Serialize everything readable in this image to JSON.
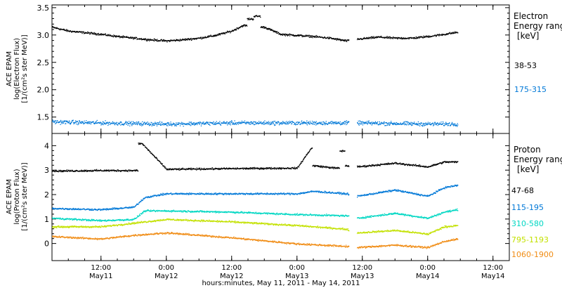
{
  "chart_data": [
    {
      "type": "scatter",
      "panel": "electron",
      "ylabel": [
        "ACE EPAM",
        "log(Electron Flux)",
        "[1/(cm²s ster MeV)]"
      ],
      "ylim": [
        1.2,
        3.55
      ],
      "yticks": [
        1.5,
        2.0,
        2.5,
        3.0,
        3.5
      ],
      "ytick_labels": [
        "1.5",
        "2.0",
        "2.5",
        "3.0",
        "3.5"
      ],
      "legend_title": [
        "Electron",
        "Energy range",
        "[keV]"
      ],
      "data_gap": [
        "2011-05-13 09:30",
        "2011-05-13 11:00"
      ],
      "series": [
        {
          "name": "38-53",
          "color": "#000000",
          "x": [
            "2011-05-11 03:00",
            "2011-05-11 06:00",
            "2011-05-11 09:00",
            "2011-05-11 12:00",
            "2011-05-11 15:00",
            "2011-05-11 18:00",
            "2011-05-11 21:00",
            "2011-05-12 00:00",
            "2011-05-12 03:00",
            "2011-05-12 06:00",
            "2011-05-12 09:00",
            "2011-05-12 12:00",
            "2011-05-12 14:00",
            "2011-05-12 15:30",
            "2011-05-12 16:30",
            "2011-05-12 18:00",
            "2011-05-12 21:00",
            "2011-05-13 00:00",
            "2011-05-13 03:00",
            "2011-05-13 06:00",
            "2011-05-13 09:00",
            "2011-05-13 11:00",
            "2011-05-13 15:00",
            "2011-05-13 18:00",
            "2011-05-13 21:00",
            "2011-05-14 00:00",
            "2011-05-14 03:00",
            "2011-05-14 05:30"
          ],
          "y": [
            3.15,
            3.08,
            3.05,
            3.02,
            2.98,
            2.95,
            2.92,
            2.9,
            2.92,
            2.95,
            3.0,
            3.08,
            3.18,
            3.3,
            3.35,
            3.15,
            3.02,
            3.0,
            2.98,
            2.95,
            2.9,
            2.93,
            2.97,
            2.95,
            2.95,
            2.98,
            3.02,
            3.06
          ]
        },
        {
          "name": "175-315",
          "color": "#0078d7",
          "x": [
            "2011-05-11 03:00",
            "2011-05-11 12:00",
            "2011-05-12 00:00",
            "2011-05-12 12:00",
            "2011-05-13 00:00",
            "2011-05-13 09:00",
            "2011-05-13 11:00",
            "2011-05-14 00:00",
            "2011-05-14 05:30"
          ],
          "y": [
            1.42,
            1.4,
            1.38,
            1.4,
            1.4,
            1.4,
            1.4,
            1.38,
            1.38
          ]
        }
      ]
    },
    {
      "type": "scatter",
      "panel": "proton",
      "ylabel": [
        "ACE EPAM",
        "log(Proton Flux)",
        "[1/(cm²s ster MeV)]"
      ],
      "ylim": [
        -0.7,
        4.5
      ],
      "yticks": [
        0,
        1,
        2,
        3,
        4
      ],
      "ytick_labels": [
        "0",
        "1",
        "2",
        "3",
        "4"
      ],
      "legend_title": [
        "Proton",
        "Energy range",
        "[keV]"
      ],
      "data_gap": [
        "2011-05-13 09:30",
        "2011-05-13 11:00"
      ],
      "series": [
        {
          "name": "47-68",
          "color": "#000000",
          "x": [
            "2011-05-11 03:00",
            "2011-05-11 12:00",
            "2011-05-11 18:00",
            "2011-05-11 19:30",
            "2011-05-12 00:00",
            "2011-05-12 12:00",
            "2011-05-13 00:00",
            "2011-05-13 02:30",
            "2011-05-13 03:00",
            "2011-05-13 07:00",
            "2011-05-13 08:30",
            "2011-05-13 09:00",
            "2011-05-13 11:00",
            "2011-05-13 18:00",
            "2011-05-14 00:00",
            "2011-05-14 03:00",
            "2011-05-14 05:30"
          ],
          "y": [
            2.98,
            3.0,
            3.0,
            4.1,
            3.05,
            3.08,
            3.1,
            3.9,
            3.2,
            3.1,
            3.8,
            3.2,
            3.15,
            3.3,
            3.15,
            3.35,
            3.35
          ]
        },
        {
          "name": "115-195",
          "color": "#0078d7",
          "x": [
            "2011-05-11 03:00",
            "2011-05-11 12:00",
            "2011-05-11 18:00",
            "2011-05-11 20:00",
            "2011-05-12 00:00",
            "2011-05-12 12:00",
            "2011-05-13 00:00",
            "2011-05-13 03:00",
            "2011-05-13 09:00",
            "2011-05-13 11:00",
            "2011-05-13 18:00",
            "2011-05-14 00:00",
            "2011-05-14 03:00",
            "2011-05-14 05:30"
          ],
          "y": [
            1.45,
            1.4,
            1.5,
            1.9,
            2.05,
            2.05,
            2.05,
            2.15,
            2.05,
            1.95,
            2.2,
            1.95,
            2.3,
            2.4
          ]
        },
        {
          "name": "310-580",
          "color": "#00d7c3",
          "x": [
            "2011-05-11 03:00",
            "2011-05-11 12:00",
            "2011-05-11 18:00",
            "2011-05-11 20:00",
            "2011-05-12 00:00",
            "2011-05-12 12:00",
            "2011-05-13 00:00",
            "2011-05-13 09:00",
            "2011-05-13 11:00",
            "2011-05-13 18:00",
            "2011-05-14 00:00",
            "2011-05-14 03:00",
            "2011-05-14 05:30"
          ],
          "y": [
            1.05,
            0.95,
            1.0,
            1.35,
            1.35,
            1.3,
            1.2,
            1.15,
            1.05,
            1.25,
            1.05,
            1.3,
            1.4
          ]
        },
        {
          "name": "795-1193",
          "color": "#c3e100",
          "x": [
            "2011-05-11 03:00",
            "2011-05-11 12:00",
            "2011-05-11 18:00",
            "2011-05-12 00:00",
            "2011-05-12 12:00",
            "2011-05-13 00:00",
            "2011-05-13 09:00",
            "2011-05-13 11:00",
            "2011-05-13 18:00",
            "2011-05-14 00:00",
            "2011-05-14 03:00",
            "2011-05-14 05:30"
          ],
          "y": [
            0.7,
            0.7,
            0.85,
            1.0,
            0.9,
            0.75,
            0.6,
            0.45,
            0.55,
            0.4,
            0.7,
            0.75
          ]
        },
        {
          "name": "1060-1900",
          "color": "#f08c14",
          "x": [
            "2011-05-11 03:00",
            "2011-05-11 12:00",
            "2011-05-11 18:00",
            "2011-05-12 00:00",
            "2011-05-12 12:00",
            "2011-05-13 00:00",
            "2011-05-13 09:00",
            "2011-05-13 11:00",
            "2011-05-13 18:00",
            "2011-05-14 00:00",
            "2011-05-14 03:00",
            "2011-05-14 05:30"
          ],
          "y": [
            0.3,
            0.2,
            0.35,
            0.45,
            0.25,
            0.0,
            -0.1,
            -0.15,
            -0.05,
            -0.15,
            0.1,
            0.2
          ]
        }
      ]
    }
  ],
  "x_axis": {
    "range": [
      "2011-05-11 03:00",
      "2011-05-14 15:00"
    ],
    "ticks": [
      {
        "t": "2011-05-11 12:00",
        "line1": "12:00",
        "line2": "May11"
      },
      {
        "t": "2011-05-12 00:00",
        "line1": "0:00",
        "line2": "May12"
      },
      {
        "t": "2011-05-12 12:00",
        "line1": "12:00",
        "line2": "May12"
      },
      {
        "t": "2011-05-13 00:00",
        "line1": "0:00",
        "line2": "May13"
      },
      {
        "t": "2011-05-13 12:00",
        "line1": "12:00",
        "line2": "May13"
      },
      {
        "t": "2011-05-14 00:00",
        "line1": "0:00",
        "line2": "May14"
      },
      {
        "t": "2011-05-14 12:00",
        "line1": "12:00",
        "line2": "May14"
      }
    ],
    "minor_ticks_hours": 3,
    "xlabel": "hours:minutes, May 11, 2011 - May 14, 2011"
  }
}
